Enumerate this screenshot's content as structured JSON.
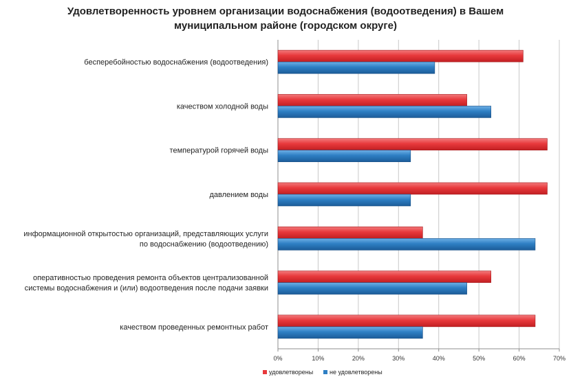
{
  "chart_data": {
    "type": "bar",
    "orientation": "horizontal",
    "title_lines": [
      "Удовлетворенность уровнем организации водоснабжения (водоотведения) в Вашем",
      "муниципальном районе (городском округе)"
    ],
    "categories": [
      [
        "бесперебойностью водоснабжения (водоотведения)"
      ],
      [
        "качеством холодной воды"
      ],
      [
        "температурой горячей воды"
      ],
      [
        "давлением воды"
      ],
      [
        "информационной открытостью организаций, представляющих услуги",
        "по водоснабжению (водоотведению)"
      ],
      [
        "оперативностью проведения  ремонта объектов централизованной",
        "системы водоснабжения и (или) водоотведения  после подачи заявки"
      ],
      [
        "качеством проведенных ремонтных работ"
      ]
    ],
    "series": [
      {
        "name": "удовлетворены",
        "color": "#e8393c",
        "values": [
          61,
          47,
          67,
          67,
          36,
          53,
          64
        ]
      },
      {
        "name": "не удовлетворены",
        "color": "#2e7fc4",
        "values": [
          39,
          53,
          33,
          33,
          64,
          47,
          36
        ]
      }
    ],
    "xlim": [
      0,
      70
    ],
    "xticks": [
      "0%",
      "10%",
      "20%",
      "30%",
      "40%",
      "50%",
      "60%",
      "70%"
    ],
    "grid": true,
    "legend_position": "bottom"
  }
}
